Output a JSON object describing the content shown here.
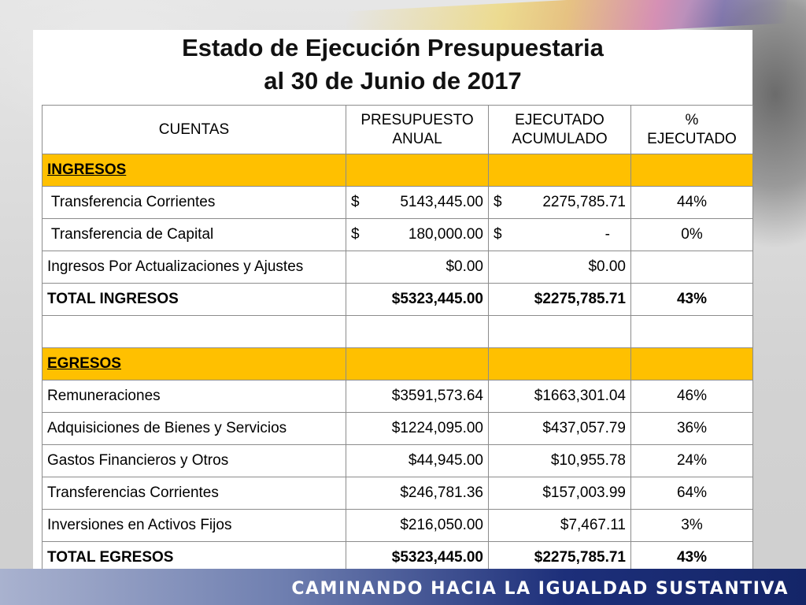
{
  "title": {
    "line1": "Estado de Ejecución Presupuestaria",
    "line2": "al 30 de Junio de 2017"
  },
  "table": {
    "headers": {
      "cuentas": "CUENTAS",
      "presupuesto_l1": "PRESUPUESTO",
      "presupuesto_l2": "ANUAL",
      "ejecutado_l1": "EJECUTADO",
      "ejecutado_l2": "ACUMULADO",
      "pct_l1": "%",
      "pct_l2": "EJECUTADO"
    },
    "ingresos_label": "INGRESOS",
    "ingresos": [
      {
        "cuenta": " Transferencia Corrientes",
        "pres_sym": "$",
        "pres": "5143,445.00",
        "ejec_sym": "$",
        "ejec": "2275,785.71",
        "pct": "44%"
      },
      {
        "cuenta": " Transferencia de Capital",
        "pres_sym": "$",
        "pres": "180,000.00",
        "ejec_sym": "$",
        "ejec": "-",
        "pct": "0%"
      }
    ],
    "ajustes": {
      "cuenta": "Ingresos Por Actualizaciones y Ajustes",
      "pres": "$0.00",
      "ejec": "$0.00",
      "pct": ""
    },
    "total_ingresos": {
      "cuenta": "TOTAL INGRESOS",
      "pres": "$5323,445.00",
      "ejec": "$2275,785.71",
      "pct": "43%"
    },
    "egresos_label": "EGRESOS",
    "egresos": [
      {
        "cuenta": "Remuneraciones",
        "pres": "$3591,573.64",
        "ejec": "$1663,301.04",
        "pct": "46%"
      },
      {
        "cuenta": "Adquisiciones de Bienes y Servicios",
        "pres": "$1224,095.00",
        "ejec": "$437,057.79",
        "pct": "36%"
      },
      {
        "cuenta": "Gastos Financieros y Otros",
        "pres": "$44,945.00",
        "ejec": "$10,955.78",
        "pct": "24%"
      },
      {
        "cuenta": "Transferencias Corrientes",
        "pres": "$246,781.36",
        "ejec": "$157,003.99",
        "pct": "64%"
      },
      {
        "cuenta": "Inversiones en Activos Fijos",
        "pres": "$216,050.00",
        "ejec": "$7,467.11",
        "pct": "3%"
      }
    ],
    "total_egresos": {
      "cuenta": "TOTAL EGRESOS",
      "pres": "$5323,445.00",
      "ejec": "$2275,785.71",
      "pct": "43%"
    }
  },
  "footer": {
    "slogan": "CAMINANDO HACIA LA IGUALDAD SUSTANTIVA"
  },
  "colors": {
    "section_fill": "#ffc000",
    "footer_blue": "#142568"
  }
}
